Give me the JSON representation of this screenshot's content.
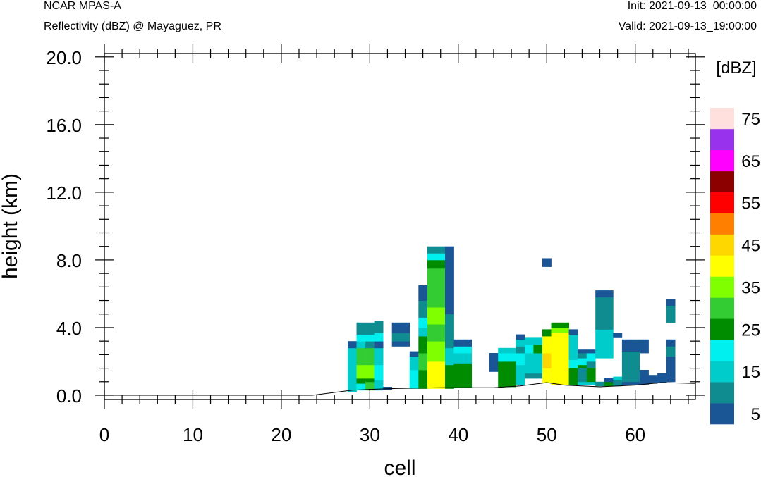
{
  "header": {
    "model": "NCAR MPAS-A",
    "subtitle": "Reflectivity (dBZ) @ Mayaguez, PR",
    "init": "Init: 2021-09-13_00:00:00",
    "valid": "Valid: 2021-09-13_19:00:00"
  },
  "chart_data": {
    "type": "heatmap",
    "title": "Reflectivity (dBZ) @ Mayaguez, PR",
    "xlabel": "cell",
    "ylabel": "height (km)",
    "xlim": [
      0,
      66.8
    ],
    "ylim": [
      -0.25,
      20.2
    ],
    "x_ticks": [
      0,
      10,
      20,
      30,
      40,
      50,
      60
    ],
    "y_ticks": [
      0.0,
      4.0,
      8.0,
      12.0,
      16.0,
      20.0
    ],
    "y_tick_labels": [
      "0.0",
      "4.0",
      "8.0",
      "12.0",
      "16.0",
      "20.0"
    ],
    "colorbar": {
      "units": "[dBZ]",
      "tick_labels": [
        "5",
        "15",
        "25",
        "35",
        "45",
        "55",
        "65",
        "75"
      ],
      "colors": [
        "#1a5596",
        "#0e8c8f",
        "#00cccc",
        "#00f0f0",
        "#008c00",
        "#33cc33",
        "#80ff00",
        "#ffff00",
        "#ffd700",
        "#ff8000",
        "#ff0000",
        "#8c0000",
        "#ff00ff",
        "#9932ec",
        "#ffe0dc"
      ]
    },
    "terrain": [
      [
        0,
        0.0
      ],
      [
        23.5,
        0.0
      ],
      [
        28,
        0.3
      ],
      [
        30,
        0.35
      ],
      [
        33,
        0.4
      ],
      [
        38,
        0.45
      ],
      [
        44,
        0.45
      ],
      [
        47,
        0.55
      ],
      [
        50,
        0.75
      ],
      [
        52,
        0.6
      ],
      [
        56,
        0.5
      ],
      [
        60,
        0.6
      ],
      [
        63,
        0.75
      ],
      [
        66.8,
        0.7
      ]
    ],
    "columns": [
      {
        "cell": 28,
        "cells": [
          [
            0.2,
            2.2,
            2
          ],
          [
            2.2,
            2.8,
            2
          ],
          [
            2.8,
            3.2,
            0
          ]
        ]
      },
      {
        "cell": 29,
        "cells": [
          [
            0.3,
            0.7,
            3
          ],
          [
            0.7,
            1.0,
            4
          ],
          [
            1.0,
            1.8,
            6
          ],
          [
            1.8,
            2.8,
            5
          ],
          [
            2.8,
            3.2,
            2
          ],
          [
            3.2,
            3.6,
            3
          ],
          [
            3.6,
            4.3,
            1
          ]
        ]
      },
      {
        "cell": 30,
        "cells": [
          [
            0.3,
            0.8,
            5
          ],
          [
            0.8,
            1.0,
            4
          ],
          [
            1.0,
            1.8,
            6
          ],
          [
            1.8,
            2.8,
            5
          ],
          [
            2.8,
            3.2,
            1
          ],
          [
            3.2,
            3.6,
            3
          ],
          [
            3.6,
            4.3,
            1
          ]
        ]
      },
      {
        "cell": 31,
        "cells": [
          [
            0.3,
            0.9,
            2
          ],
          [
            0.9,
            1.8,
            3
          ],
          [
            1.8,
            2.8,
            2
          ],
          [
            2.8,
            3.2,
            0
          ],
          [
            3.2,
            3.7,
            3
          ],
          [
            3.7,
            4.4,
            1
          ]
        ]
      },
      {
        "cell": 32,
        "cells": [
          [
            0.35,
            0.5,
            0
          ]
        ]
      },
      {
        "cell": 33,
        "cells": [
          [
            2.9,
            3.2,
            0
          ],
          [
            3.2,
            3.7,
            1
          ],
          [
            3.7,
            4.3,
            0
          ]
        ]
      },
      {
        "cell": 34,
        "cells": [
          [
            2.9,
            3.2,
            0
          ],
          [
            3.2,
            3.7,
            1
          ],
          [
            3.7,
            4.3,
            0
          ]
        ]
      },
      {
        "cell": 35,
        "cells": [
          [
            0.4,
            1.5,
            3
          ],
          [
            1.5,
            2.3,
            2
          ],
          [
            2.3,
            2.6,
            0
          ]
        ]
      },
      {
        "cell": 36,
        "cells": [
          [
            0.4,
            1.5,
            4
          ],
          [
            1.5,
            2.5,
            5
          ],
          [
            2.5,
            3.5,
            4
          ],
          [
            3.5,
            4.0,
            2
          ],
          [
            4.0,
            4.6,
            3
          ],
          [
            4.6,
            5.6,
            1
          ],
          [
            5.6,
            6.5,
            0
          ]
        ]
      },
      {
        "cell": 37,
        "cells": [
          [
            0.4,
            2.0,
            7
          ],
          [
            2.0,
            3.2,
            6
          ],
          [
            3.2,
            4.2,
            5
          ],
          [
            4.2,
            5.2,
            6
          ],
          [
            5.2,
            7.5,
            5
          ],
          [
            7.5,
            8.0,
            4
          ],
          [
            8.0,
            8.4,
            3
          ],
          [
            8.4,
            8.8,
            1
          ]
        ]
      },
      {
        "cell": 38,
        "cells": [
          [
            0.4,
            2.0,
            7
          ],
          [
            2.0,
            3.2,
            6
          ],
          [
            3.2,
            4.2,
            5
          ],
          [
            4.2,
            5.2,
            6
          ],
          [
            5.2,
            7.5,
            5
          ],
          [
            7.5,
            8.0,
            4
          ],
          [
            8.0,
            8.4,
            3
          ],
          [
            8.4,
            8.8,
            1
          ]
        ]
      },
      {
        "cell": 39,
        "cells": [
          [
            0.4,
            1.8,
            4
          ],
          [
            1.8,
            2.8,
            2
          ],
          [
            2.8,
            3.5,
            1
          ],
          [
            3.5,
            4.8,
            1
          ],
          [
            4.8,
            6.0,
            0
          ],
          [
            6.0,
            7.5,
            0
          ],
          [
            7.5,
            8.8,
            0
          ]
        ]
      },
      {
        "cell": 40,
        "cells": [
          [
            0.45,
            1.9,
            4
          ],
          [
            1.9,
            2.5,
            2
          ],
          [
            2.5,
            2.9,
            3
          ],
          [
            2.9,
            3.3,
            0
          ]
        ]
      },
      {
        "cell": 41,
        "cells": [
          [
            0.45,
            1.9,
            4
          ],
          [
            1.9,
            2.5,
            2
          ],
          [
            2.5,
            2.9,
            3
          ],
          [
            2.9,
            3.3,
            0
          ]
        ]
      },
      {
        "cell": 44,
        "cells": [
          [
            1.4,
            2.5,
            0
          ]
        ]
      },
      {
        "cell": 45,
        "cells": [
          [
            0.5,
            2.0,
            4
          ],
          [
            2.0,
            2.5,
            3
          ],
          [
            2.5,
            2.8,
            2
          ]
        ]
      },
      {
        "cell": 46,
        "cells": [
          [
            0.5,
            2.0,
            4
          ],
          [
            2.0,
            2.5,
            3
          ],
          [
            2.5,
            2.8,
            2
          ]
        ]
      },
      {
        "cell": 47,
        "cells": [
          [
            0.6,
            1.8,
            2
          ],
          [
            1.8,
            2.5,
            3
          ],
          [
            2.5,
            2.9,
            1
          ],
          [
            2.9,
            3.3,
            2
          ],
          [
            3.3,
            3.6,
            0
          ]
        ]
      },
      {
        "cell": 48,
        "cells": [
          [
            1.0,
            1.3,
            1
          ],
          [
            1.3,
            1.8,
            2
          ],
          [
            1.8,
            2.5,
            2
          ],
          [
            2.5,
            3.0,
            3
          ],
          [
            3.0,
            3.4,
            2
          ]
        ]
      },
      {
        "cell": 49,
        "cells": [
          [
            1.0,
            1.3,
            1
          ],
          [
            1.3,
            1.8,
            2
          ],
          [
            1.8,
            2.5,
            2
          ],
          [
            2.5,
            3.0,
            4
          ],
          [
            3.0,
            3.4,
            2
          ]
        ]
      },
      {
        "cell": 50,
        "cells": [
          [
            0.75,
            1.6,
            7
          ],
          [
            1.6,
            2.5,
            8
          ],
          [
            2.5,
            3.5,
            7
          ],
          [
            3.5,
            3.9,
            4
          ],
          [
            7.6,
            8.1,
            0
          ]
        ]
      },
      {
        "cell": 51,
        "cells": [
          [
            0.6,
            3.7,
            7
          ],
          [
            3.7,
            4.0,
            6
          ],
          [
            4.0,
            4.3,
            4
          ]
        ]
      },
      {
        "cell": 52,
        "cells": [
          [
            0.6,
            3.7,
            7
          ],
          [
            3.7,
            4.0,
            6
          ],
          [
            4.0,
            4.3,
            4
          ]
        ]
      },
      {
        "cell": 53,
        "cells": [
          [
            0.6,
            1.6,
            4
          ],
          [
            1.6,
            2.1,
            3
          ],
          [
            2.1,
            3.6,
            2
          ],
          [
            3.6,
            3.9,
            0
          ]
        ]
      },
      {
        "cell": 54,
        "cells": [
          [
            0.6,
            0.8,
            2
          ],
          [
            0.8,
            1.6,
            1
          ],
          [
            1.6,
            1.8,
            4
          ],
          [
            1.8,
            2.2,
            3
          ],
          [
            2.2,
            2.5,
            1
          ],
          [
            2.5,
            2.7,
            0
          ]
        ]
      },
      {
        "cell": 55,
        "cells": [
          [
            0.6,
            0.8,
            2
          ],
          [
            0.8,
            1.6,
            4
          ],
          [
            1.6,
            2.0,
            1
          ],
          [
            2.0,
            2.5,
            3
          ],
          [
            2.5,
            2.7,
            0
          ]
        ]
      },
      {
        "cell": 56,
        "cells": [
          [
            0.55,
            0.8,
            1
          ],
          [
            2.2,
            3.9,
            2
          ],
          [
            3.9,
            4.3,
            1
          ],
          [
            4.3,
            5.8,
            1
          ],
          [
            5.8,
            6.2,
            0
          ]
        ]
      },
      {
        "cell": 57,
        "cells": [
          [
            0.55,
            0.8,
            4
          ],
          [
            0.8,
            1.0,
            0
          ],
          [
            2.2,
            3.9,
            2
          ],
          [
            3.9,
            4.3,
            1
          ],
          [
            4.3,
            5.8,
            1
          ],
          [
            5.8,
            6.2,
            0
          ]
        ]
      },
      {
        "cell": 58,
        "cells": [
          [
            0.55,
            0.9,
            1
          ],
          [
            0.9,
            1.1,
            2
          ],
          [
            3.4,
            3.7,
            0
          ]
        ]
      },
      {
        "cell": 59,
        "cells": [
          [
            0.6,
            0.8,
            0
          ],
          [
            0.8,
            2.6,
            1
          ],
          [
            2.6,
            3.3,
            0
          ]
        ]
      },
      {
        "cell": 60,
        "cells": [
          [
            0.6,
            0.8,
            0
          ],
          [
            0.8,
            2.6,
            1
          ],
          [
            2.6,
            3.3,
            0
          ]
        ]
      },
      {
        "cell": 61,
        "cells": [
          [
            0.65,
            1.0,
            0
          ],
          [
            1.0,
            1.5,
            0
          ],
          [
            2.5,
            3.3,
            0
          ]
        ]
      },
      {
        "cell": 62,
        "cells": [
          [
            0.7,
            1.2,
            0
          ]
        ]
      },
      {
        "cell": 63,
        "cells": [
          [
            0.75,
            1.3,
            0
          ]
        ]
      },
      {
        "cell": 64,
        "cells": [
          [
            0.8,
            1.4,
            0
          ],
          [
            1.4,
            2.3,
            0
          ],
          [
            2.3,
            2.9,
            1
          ],
          [
            2.9,
            3.3,
            0
          ],
          [
            4.3,
            5.3,
            1
          ],
          [
            5.3,
            5.7,
            0
          ]
        ]
      }
    ]
  }
}
